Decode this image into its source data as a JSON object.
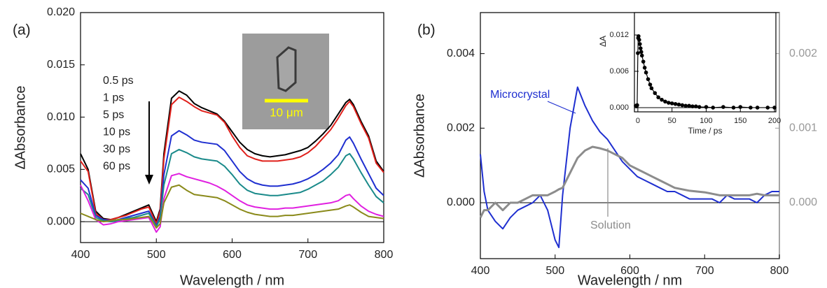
{
  "chart_data": [
    {
      "type": "line",
      "panel_label": "(a)",
      "xlabel": "Wavelength / nm",
      "ylabel": "ΔAbsorbance",
      "xlim": [
        400,
        800
      ],
      "ylim": [
        -0.002,
        0.02
      ],
      "zero_line": true,
      "xticks": [
        400,
        500,
        600,
        700,
        800
      ],
      "yticks": [
        {
          "value": 0,
          "label": "0.000"
        },
        {
          "value": 0.005,
          "label": "0.005"
        },
        {
          "value": 0.01,
          "label": "0.010"
        },
        {
          "value": 0.015,
          "label": "0.015"
        },
        {
          "value": 0.02,
          "label": "0.020"
        }
      ],
      "annotations": [
        "0.5 ps",
        "1 ps",
        "5 ps",
        "10 ps",
        "30 ps",
        "60 ps"
      ],
      "image_scale_label": "10 μm",
      "x": [
        400,
        410,
        420,
        430,
        440,
        450,
        460,
        470,
        480,
        490,
        495,
        500,
        505,
        510,
        520,
        530,
        540,
        550,
        560,
        570,
        580,
        590,
        600,
        610,
        620,
        630,
        640,
        650,
        660,
        670,
        680,
        690,
        700,
        710,
        720,
        730,
        740,
        750,
        755,
        760,
        770,
        780,
        790,
        800
      ],
      "series": [
        {
          "color": "#000000",
          "values": [
            0.0065,
            0.005,
            0.001,
            0.0003,
            0.0002,
            0.0004,
            0.0007,
            0.001,
            0.0013,
            0.0016,
            0.0008,
            0.0,
            0.0012,
            0.0065,
            0.0118,
            0.0125,
            0.0121,
            0.0113,
            0.0109,
            0.0106,
            0.0103,
            0.0096,
            0.0086,
            0.0076,
            0.0069,
            0.0065,
            0.0063,
            0.0062,
            0.0063,
            0.0064,
            0.0066,
            0.0068,
            0.0071,
            0.0077,
            0.0084,
            0.0092,
            0.0103,
            0.0114,
            0.0117,
            0.0112,
            0.0096,
            0.0082,
            0.0058,
            0.0048
          ]
        },
        {
          "color": "#e0201b",
          "values": [
            0.0058,
            0.0048,
            0.0008,
            0.0002,
            0.0002,
            0.0004,
            0.0006,
            0.0009,
            0.0012,
            0.0014,
            0.0006,
            -0.0002,
            0.001,
            0.006,
            0.0112,
            0.0119,
            0.0115,
            0.011,
            0.0106,
            0.0104,
            0.0102,
            0.0095,
            0.0082,
            0.0071,
            0.0063,
            0.006,
            0.0058,
            0.0058,
            0.0058,
            0.0059,
            0.006,
            0.0062,
            0.0066,
            0.0072,
            0.008,
            0.0088,
            0.0099,
            0.0111,
            0.0115,
            0.011,
            0.0094,
            0.008,
            0.0056,
            0.0047
          ]
        },
        {
          "color": "#1f2fd0",
          "values": [
            0.004,
            0.0032,
            0.0006,
            0.0002,
            0.0001,
            0.0002,
            0.0004,
            0.0006,
            0.0008,
            0.001,
            0.0003,
            -0.0004,
            0.0005,
            0.0045,
            0.0082,
            0.0087,
            0.0083,
            0.0078,
            0.0076,
            0.0075,
            0.0074,
            0.0068,
            0.0058,
            0.0048,
            0.0041,
            0.0037,
            0.0035,
            0.0034,
            0.0034,
            0.0035,
            0.0036,
            0.0038,
            0.0041,
            0.0045,
            0.005,
            0.0056,
            0.0064,
            0.0078,
            0.0081,
            0.0075,
            0.006,
            0.0046,
            0.0032,
            0.0025
          ]
        },
        {
          "color": "#1a8a8a",
          "values": [
            0.0032,
            0.0026,
            0.0004,
            0.0001,
            0.0,
            0.0001,
            0.0003,
            0.0004,
            0.0006,
            0.0008,
            0.0002,
            -0.0005,
            0.0003,
            0.0035,
            0.0065,
            0.0069,
            0.0066,
            0.0062,
            0.006,
            0.0059,
            0.0058,
            0.0053,
            0.0045,
            0.0036,
            0.003,
            0.0027,
            0.0026,
            0.0025,
            0.0025,
            0.0026,
            0.0027,
            0.0028,
            0.0031,
            0.0035,
            0.0039,
            0.0045,
            0.0052,
            0.0063,
            0.0065,
            0.006,
            0.0047,
            0.0035,
            0.0024,
            0.0018
          ]
        },
        {
          "color": "#e020e0",
          "values": [
            0.0035,
            0.002,
            0.0002,
            -0.0003,
            -0.0002,
            0.0,
            0.0001,
            0.0002,
            0.0003,
            0.0004,
            -0.0003,
            -0.001,
            -0.0005,
            0.0022,
            0.0044,
            0.0046,
            0.0043,
            0.0041,
            0.0039,
            0.0037,
            0.0034,
            0.003,
            0.0025,
            0.002,
            0.0016,
            0.0014,
            0.0013,
            0.0012,
            0.0012,
            0.0013,
            0.0013,
            0.0014,
            0.0015,
            0.0016,
            0.0017,
            0.0018,
            0.002,
            0.0025,
            0.0026,
            0.0022,
            0.0015,
            0.001,
            0.0007,
            0.0005
          ]
        },
        {
          "color": "#8a8a1a",
          "values": [
            0.0008,
            0.0005,
            0.0002,
            0.0,
            0.0001,
            0.0002,
            0.0002,
            0.0003,
            0.0004,
            0.0005,
            0.0,
            -0.0006,
            -0.0002,
            0.0018,
            0.0033,
            0.0035,
            0.003,
            0.0026,
            0.0025,
            0.0024,
            0.0023,
            0.002,
            0.0016,
            0.0012,
            0.0009,
            0.0007,
            0.0006,
            0.0005,
            0.0005,
            0.0006,
            0.0006,
            0.0007,
            0.0008,
            0.0009,
            0.001,
            0.0011,
            0.0012,
            0.0015,
            0.0016,
            0.0014,
            0.0009,
            0.0005,
            0.0004,
            0.0003
          ]
        }
      ]
    },
    {
      "type": "line",
      "panel_label": "(b)",
      "xlabel": "Wavelength / nm",
      "ylabel": "ΔAbsorbance",
      "xlim": [
        400,
        800
      ],
      "ylim": [
        -0.0015,
        0.0051
      ],
      "y2lim": [
        -0.00075,
        0.00255
      ],
      "zero_line": true,
      "xticks": [
        400,
        500,
        600,
        700,
        800
      ],
      "yticks": [
        {
          "value": 0,
          "label": "0.000"
        },
        {
          "value": 0.002,
          "label": "0.002"
        },
        {
          "value": 0.004,
          "label": "0.004"
        }
      ],
      "y2ticks": [
        {
          "value": 0,
          "label": "0.000"
        },
        {
          "value": 0.001,
          "label": "0.001"
        },
        {
          "value": 0.002,
          "label": "0.002"
        }
      ],
      "y2color": "#999999",
      "x": [
        400,
        405,
        410,
        420,
        430,
        440,
        450,
        460,
        470,
        480,
        490,
        500,
        505,
        510,
        520,
        530,
        540,
        550,
        560,
        570,
        580,
        590,
        600,
        610,
        620,
        630,
        640,
        650,
        660,
        670,
        680,
        690,
        700,
        710,
        720,
        730,
        740,
        750,
        760,
        770,
        780,
        790,
        800
      ],
      "series": [
        {
          "name": "Microcrystal",
          "color": "#1f2fd0",
          "values": [
            0.0013,
            0.0003,
            -0.0002,
            -0.0005,
            -0.0007,
            -0.0004,
            -0.0002,
            -0.0001,
            0.0,
            0.0002,
            -0.0002,
            -0.001,
            -0.0012,
            0.0002,
            0.002,
            0.0031,
            0.0026,
            0.0022,
            0.0019,
            0.0017,
            0.0014,
            0.0011,
            0.0009,
            0.0007,
            0.0006,
            0.0005,
            0.0004,
            0.0003,
            0.0003,
            0.0002,
            0.0001,
            0.0001,
            0.0001,
            0.0001,
            0.0,
            0.0002,
            0.0001,
            0.0001,
            0.0001,
            0.0,
            0.0002,
            0.0003,
            0.0003
          ]
        },
        {
          "name": "Solution",
          "color": "#8c8c8c",
          "axis": "y2",
          "values": [
            -0.0002,
            -0.0001,
            -0.0001,
            0.0,
            -0.0001,
            0.0,
            0.0,
            5e-05,
            0.0001,
            0.0001,
            0.0001,
            0.00015,
            0.00018,
            0.0002,
            0.0004,
            0.0006,
            0.0007,
            0.00075,
            0.00073,
            0.0007,
            0.00065,
            0.0006,
            0.0005,
            0.00045,
            0.0004,
            0.00035,
            0.0003,
            0.00025,
            0.0002,
            0.00018,
            0.00016,
            0.00015,
            0.00014,
            0.00012,
            0.0001,
            0.0001,
            0.0001,
            0.0001,
            0.0001,
            0.00012,
            0.0001,
            0.0001,
            0.0001
          ]
        }
      ]
    },
    {
      "type": "scatter",
      "xlabel": "Time / ps",
      "ylabel": "ΔA",
      "xlim": [
        -5,
        202
      ],
      "ylim": [
        -0.0007,
        0.0157
      ],
      "zero_line": true,
      "xticks": [
        0,
        50,
        100,
        150,
        200
      ],
      "yticks": [
        {
          "value": 0,
          "label": "0.000"
        },
        {
          "value": 0.006,
          "label": "0.006"
        },
        {
          "value": 0.012,
          "label": "0.012"
        }
      ],
      "x": [
        -3,
        -2,
        -1,
        0,
        0.5,
        1,
        2,
        3,
        4,
        5,
        6,
        8,
        10,
        12,
        15,
        18,
        20,
        25,
        30,
        35,
        40,
        45,
        50,
        55,
        60,
        65,
        70,
        75,
        80,
        85,
        90,
        100,
        110,
        125,
        140,
        150,
        165,
        175,
        190,
        200
      ],
      "series": [
        {
          "color": "#000000",
          "values": [
            0.0003,
            0.0002,
            0.0004,
            0.009,
            0.0115,
            0.0118,
            0.0112,
            0.0105,
            0.0098,
            0.0092,
            0.0086,
            0.0076,
            0.0066,
            0.0058,
            0.0047,
            0.0038,
            0.0032,
            0.0024,
            0.0017,
            0.0013,
            0.001,
            0.0008,
            0.0007,
            0.0006,
            0.0005,
            0.0004,
            0.0003,
            0.0003,
            0.0002,
            0.0002,
            0.0001,
            0.0001,
            0.0,
            0.0001,
            0.0,
            0.0001,
            0.0,
            0.0,
            0.0,
            0.0
          ]
        }
      ]
    }
  ]
}
